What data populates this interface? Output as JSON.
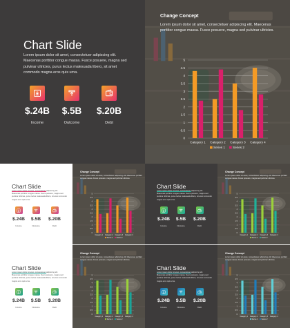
{
  "title": "Chart Slide",
  "body": "Lorem ipsum dolor sit amet, consectetuer adipiscing elit. Maecenas porttitor congue massa. Fusce posuere, magna sed pulvinar ultricies, purus lectus malesuada libero, sit amet commodo magna eros quis urna.",
  "stats": [
    {
      "amount": "$.24B",
      "label": "Income",
      "icon": "download-icon"
    },
    {
      "amount": "$.5B",
      "label": "Outcome",
      "icon": "upload-icon"
    },
    {
      "amount": "$.20B",
      "label": "Debt",
      "icon": "wallet-icon"
    }
  ],
  "chart_title": "Change Concept",
  "chart_text": "Lorem ipsum dolor sit amet, consectetuer adipiscing elit. Maecenas porttitor congue massa. Fusce posuere, magna sed pulvinar ultricies.",
  "chart_data": {
    "type": "bar",
    "categories": [
      "Category 1",
      "Category 2",
      "Category 3",
      "Category 4"
    ],
    "series": [
      {
        "name": "Series 1",
        "values": [
          4.3,
          2.5,
          3.5,
          4.5
        ]
      },
      {
        "name": "Series 2",
        "values": [
          2.4,
          4.4,
          1.8,
          2.8
        ]
      }
    ],
    "yticks": [
      "0",
      "0.5",
      "1",
      "1.5",
      "2",
      "2.5",
      "3",
      "3.5",
      "4",
      "4.5",
      "5"
    ],
    "ylim": [
      0,
      5
    ],
    "legend": "bottom"
  },
  "themes": [
    {
      "left_bg": "#3d3b3b",
      "title_color": "#ffffff",
      "text_color": "#e6e6e6",
      "accent": "#ffffff",
      "icon_from": "#f3a32a",
      "icon_to": "#e8316e",
      "s1": "#f39a26",
      "s2": "#d8206a",
      "underline": false
    },
    {
      "left_bg": "#ffffff",
      "title_color": "#3a3a3a",
      "text_color": "#555555",
      "accent": "#333333",
      "icon_from": "#f3a32a",
      "icon_to": "#c83fa0",
      "s1": "#f39a26",
      "s2": "#d8206a",
      "underline": true,
      "underline_color": "#e8316e"
    },
    {
      "left_bg": "#3d3b3b",
      "title_color": "#ffffff",
      "text_color": "#e6e6e6",
      "accent": "#ffffff",
      "icon_from": "#7ac943",
      "icon_to": "#19a8a0",
      "s1": "#9bd13a",
      "s2": "#1fb29a",
      "underline": true,
      "underline_color": "#1fb29a"
    },
    {
      "left_bg": "#ffffff",
      "title_color": "#3a3a3a",
      "text_color": "#555555",
      "accent": "#333333",
      "icon_from": "#8bc34a",
      "icon_to": "#1a9f8f",
      "s1": "#9bd13a",
      "s2": "#1aa59a",
      "underline": true,
      "underline_color": "#1aa59a"
    },
    {
      "left_bg": "#3d3b3b",
      "title_color": "#ffffff",
      "text_color": "#e6e6e6",
      "accent": "#ffffff",
      "icon_from": "#1f6fb2",
      "icon_to": "#3cc3c8",
      "s1": "#5fd0d8",
      "s2": "#1f7dbd",
      "underline": true,
      "underline_color": "#3cc3c8"
    }
  ]
}
